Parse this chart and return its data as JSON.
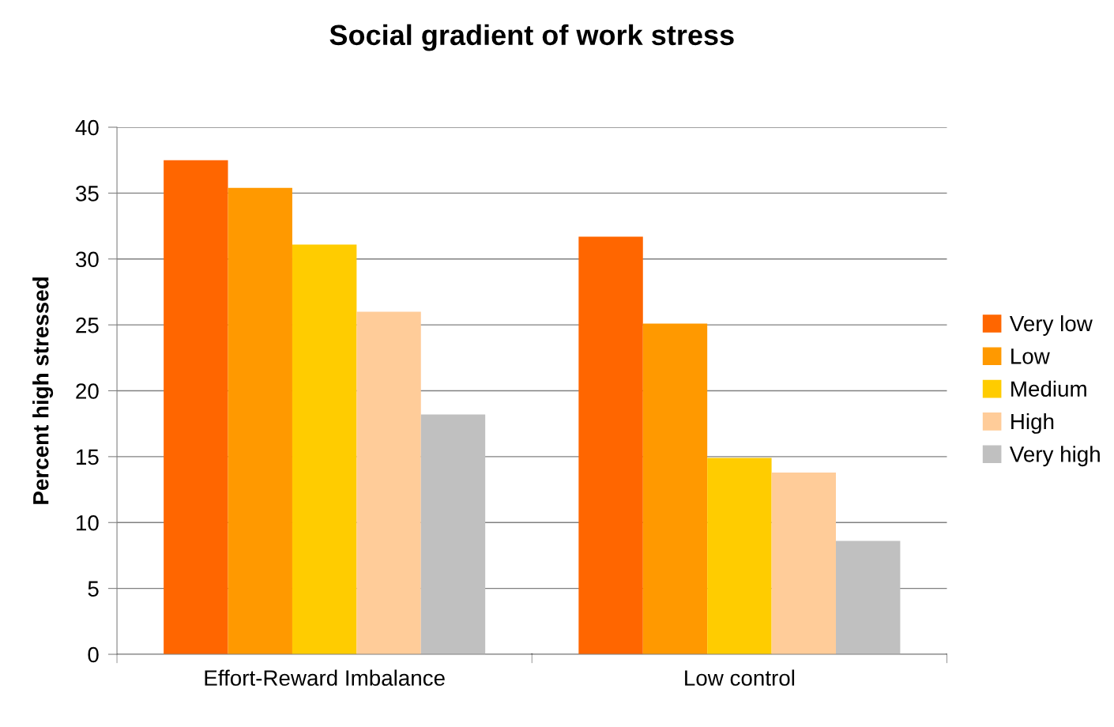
{
  "chart_data": {
    "type": "bar",
    "title": "Social gradient of work stress",
    "ylabel": "Percent high stressed",
    "categories": [
      "Effort-Reward Imbalance",
      "Low control"
    ],
    "series": [
      {
        "name": "Very low",
        "color": "#ff6600",
        "values": [
          37.5,
          31.7
        ]
      },
      {
        "name": "Low",
        "color": "#ff9900",
        "values": [
          35.4,
          25.1
        ]
      },
      {
        "name": "Medium",
        "color": "#ffcc00",
        "values": [
          31.1,
          14.9
        ]
      },
      {
        "name": "High",
        "color": "#ffcc99",
        "values": [
          26.0,
          13.8
        ]
      },
      {
        "name": "Very high",
        "color": "#c0c0c0",
        "values": [
          18.2,
          8.6
        ]
      }
    ],
    "ylim": [
      0,
      40
    ],
    "yticks": [
      0,
      5,
      10,
      15,
      20,
      25,
      30,
      35,
      40
    ],
    "grid": "y",
    "legend": "right"
  }
}
